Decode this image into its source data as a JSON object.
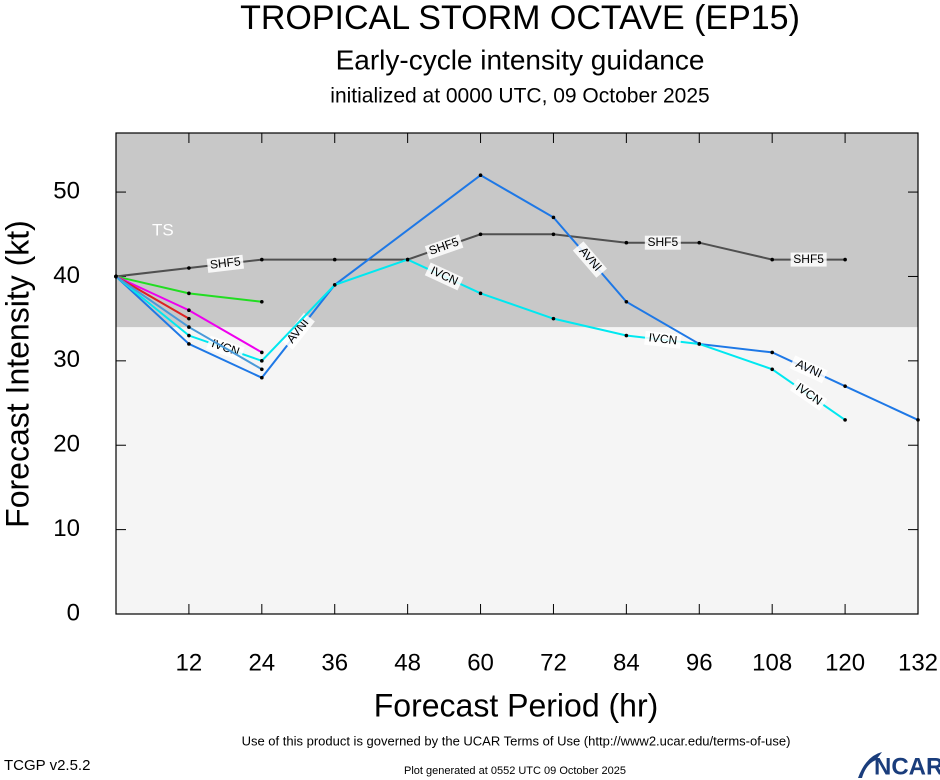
{
  "chart_data": {
    "type": "line",
    "title": "TROPICAL STORM OCTAVE (EP15)",
    "subtitle": "Early-cycle intensity guidance",
    "subtitle2": "initialized at 0000 UTC, 09 October 2025",
    "x_label": "Forecast Period (hr)",
    "y_label": "Forecast Intensity (kt)",
    "xlim": [
      0,
      132
    ],
    "xticks": [
      12,
      24,
      36,
      48,
      60,
      72,
      84,
      96,
      108,
      120,
      132
    ],
    "ylim": [
      0,
      57
    ],
    "yticks": [
      0,
      10,
      20,
      30,
      40,
      50
    ],
    "bands": [
      {
        "label": "TS",
        "from": 34,
        "to": 57,
        "color": "#c8c8c8"
      }
    ],
    "background": "#f5f5f5",
    "series": [
      {
        "name": "SHF5",
        "color": "#505050",
        "x": [
          0,
          12,
          24,
          36,
          48,
          60,
          72,
          84,
          96,
          108,
          120
        ],
        "values": [
          40,
          41,
          42,
          42,
          42,
          45,
          45,
          44,
          44,
          42,
          42
        ]
      },
      {
        "name": "AVNI",
        "color": "#1e78e6",
        "x": [
          0,
          12,
          24,
          36,
          60,
          72,
          84,
          96,
          108,
          120,
          132
        ],
        "values": [
          40,
          32,
          28,
          39,
          52,
          47,
          37,
          32,
          31,
          27,
          23
        ]
      },
      {
        "name": "IVCN",
        "color": "#00e8f0",
        "x": [
          0,
          12,
          24,
          36,
          48,
          60,
          72,
          84,
          96,
          108,
          120
        ],
        "values": [
          40,
          33,
          30,
          39,
          42,
          38,
          35,
          33,
          32,
          29,
          23
        ]
      },
      {
        "color": "#22dd22",
        "x": [
          0,
          12,
          24
        ],
        "values": [
          40,
          38,
          37
        ]
      },
      {
        "color": "#ee00ee",
        "x": [
          0,
          12,
          24
        ],
        "values": [
          40,
          36,
          31
        ]
      },
      {
        "color": "#dd2222",
        "x": [
          0,
          12
        ],
        "values": [
          40,
          35
        ]
      },
      {
        "color": "#4a9ad9",
        "x": [
          0,
          12,
          24
        ],
        "values": [
          40,
          34,
          29
        ]
      }
    ],
    "footer": "Use of this product is governed by the UCAR Terms of Use (http://www2.ucar.edu/terms-of-use)",
    "version": "TCGP v2.5.2",
    "generated": "Plot generated at 0552 UTC   09 October 2025",
    "logo": "NCAR"
  }
}
